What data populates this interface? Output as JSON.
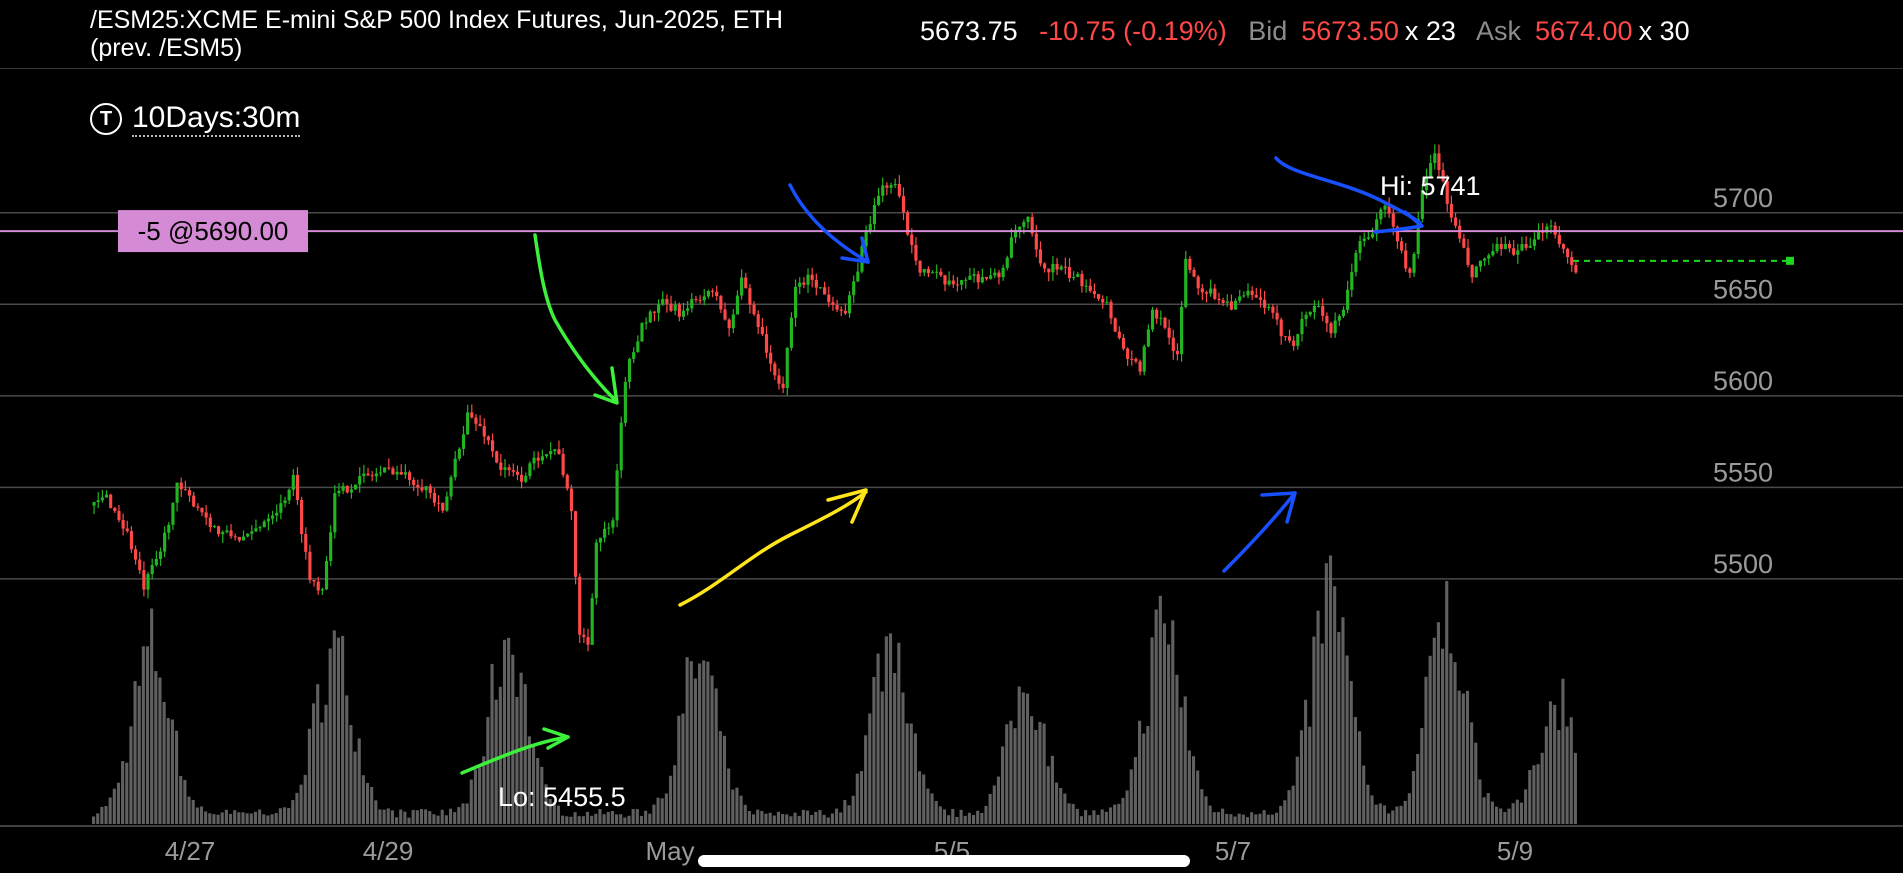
{
  "header": {
    "title": "/ESM25:XCME E-mini S&P 500 Index Futures, Jun-2025, ETH (prev. /ESM5)",
    "last": "5673.75",
    "change": "-10.75 (-0.19%)",
    "bid_label": "Bid",
    "bid_price": "5673.50",
    "bid_size": "x 23",
    "ask_label": "Ask",
    "ask_price": "5674.00",
    "ask_size": "x 30"
  },
  "timeframe": {
    "icon": "T",
    "label": "10Days:30m"
  },
  "colors": {
    "up": "#21b521",
    "down": "#ff4848",
    "grid": "#4a4a4a",
    "position_line": "#d58ad5",
    "volume": "#6a6a6a",
    "last_line": "#1fd61f",
    "annot_green": "#3cf03c",
    "annot_blue": "#1850ff",
    "annot_yellow": "#ffe51a"
  },
  "chart_data": {
    "type": "candlestick",
    "y_ticks": [
      5500,
      5550,
      5600,
      5650,
      5700
    ],
    "ylim": [
      5365,
      5778
    ],
    "x_ticks": [
      "4/27",
      "4/29",
      "May",
      "5/5",
      "5/7",
      "5/9"
    ],
    "hi_label": "Hi: 5741",
    "lo_label": "Lo: 5455.5",
    "position_label": "-5 @5690.00",
    "position_price": 5690,
    "last_price": 5673.75,
    "path": [
      [
        0,
        5540
      ],
      [
        3,
        5545
      ],
      [
        8,
        5525
      ],
      [
        12,
        5495
      ],
      [
        16,
        5515
      ],
      [
        20,
        5550
      ],
      [
        25,
        5540
      ],
      [
        30,
        5525
      ],
      [
        37,
        5522
      ],
      [
        42,
        5535
      ],
      [
        45,
        5540
      ],
      [
        48,
        5555
      ],
      [
        52,
        5500
      ],
      [
        55,
        5495
      ],
      [
        58,
        5545
      ],
      [
        64,
        5555
      ],
      [
        72,
        5560
      ],
      [
        80,
        5550
      ],
      [
        84,
        5535
      ],
      [
        87,
        5565
      ],
      [
        90,
        5590
      ],
      [
        94,
        5580
      ],
      [
        98,
        5560
      ],
      [
        103,
        5555
      ],
      [
        108,
        5570
      ],
      [
        112,
        5570
      ],
      [
        115,
        5535
      ],
      [
        117,
        5470
      ],
      [
        119,
        5465
      ],
      [
        121,
        5520
      ],
      [
        125,
        5530
      ],
      [
        128,
        5610
      ],
      [
        132,
        5640
      ],
      [
        137,
        5650
      ],
      [
        142,
        5645
      ],
      [
        146,
        5655
      ],
      [
        150,
        5655
      ],
      [
        153,
        5635
      ],
      [
        156,
        5665
      ],
      [
        158,
        5650
      ],
      [
        161,
        5635
      ],
      [
        163,
        5615
      ],
      [
        166,
        5605
      ],
      [
        169,
        5660
      ],
      [
        173,
        5665
      ],
      [
        176,
        5655
      ],
      [
        179,
        5650
      ],
      [
        181,
        5645
      ],
      [
        183,
        5660
      ],
      [
        186,
        5690
      ],
      [
        190,
        5715
      ],
      [
        193,
        5715
      ],
      [
        196,
        5690
      ],
      [
        199,
        5670
      ],
      [
        203,
        5665
      ],
      [
        206,
        5660
      ],
      [
        210,
        5665
      ],
      [
        214,
        5665
      ],
      [
        218,
        5665
      ],
      [
        222,
        5690
      ],
      [
        225,
        5695
      ],
      [
        228,
        5670
      ],
      [
        232,
        5670
      ],
      [
        236,
        5665
      ],
      [
        240,
        5660
      ],
      [
        244,
        5650
      ],
      [
        248,
        5625
      ],
      [
        252,
        5615
      ],
      [
        255,
        5645
      ],
      [
        258,
        5640
      ],
      [
        261,
        5620
      ],
      [
        263,
        5675
      ],
      [
        266,
        5660
      ],
      [
        270,
        5655
      ],
      [
        274,
        5650
      ],
      [
        278,
        5655
      ],
      [
        282,
        5650
      ],
      [
        286,
        5635
      ],
      [
        289,
        5630
      ],
      [
        292,
        5645
      ],
      [
        295,
        5650
      ],
      [
        298,
        5635
      ],
      [
        301,
        5645
      ],
      [
        304,
        5680
      ],
      [
        308,
        5690
      ],
      [
        311,
        5705
      ],
      [
        314,
        5685
      ],
      [
        317,
        5665
      ],
      [
        320,
        5710
      ],
      [
        323,
        5735
      ],
      [
        326,
        5705
      ],
      [
        329,
        5685
      ],
      [
        332,
        5665
      ],
      [
        335,
        5675
      ],
      [
        338,
        5680
      ],
      [
        342,
        5680
      ],
      [
        346,
        5680
      ],
      [
        350,
        5695
      ],
      [
        352,
        5690
      ],
      [
        355,
        5675
      ],
      [
        357,
        5670
      ]
    ],
    "vol_peaks": [
      {
        "x": 14,
        "h": 0.7
      },
      {
        "x": 58,
        "h": 0.7
      },
      {
        "x": 100,
        "h": 0.75
      },
      {
        "x": 146,
        "h": 0.65
      },
      {
        "x": 192,
        "h": 0.75
      },
      {
        "x": 225,
        "h": 0.55
      },
      {
        "x": 258,
        "h": 0.8
      },
      {
        "x": 298,
        "h": 0.95
      },
      {
        "x": 326,
        "h": 0.85
      },
      {
        "x": 353,
        "h": 0.5
      }
    ]
  }
}
